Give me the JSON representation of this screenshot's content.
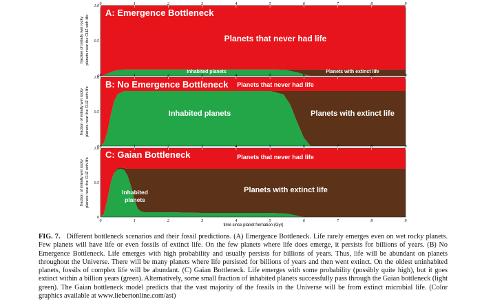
{
  "colors": {
    "never_had_life": "#e8141b",
    "inhabited": "#22a648",
    "extinct": "#5c3218",
    "light_inhabited": "#8fd45e",
    "text": "#ffffff"
  },
  "figure": {
    "xlabel": "time since planet formation (Gyr)",
    "ylabel_line1": "fraction of initially wet rocky",
    "ylabel_line2": "planets near the CHZ with life"
  },
  "caption": {
    "label": "FIG. 7.",
    "text": "Different bottleneck scenarios and their fossil predictions. (A) Emergence Bottleneck. Life rarely emerges even on wet rocky planets. Few planets will have life or even fossils of extinct life. On the few planets where life does emerge, it persists for billions of years. (B) No Emergence Bottleneck. Life emerges with high probability and usually persists for billions of years. Thus, life will be abundant on planets throughout the Universe. There will be many planets where life persisted for billions of years and then went extinct. On the oldest uninhabited planets, fossils of complex life will be abundant. (C) Gaian Bottleneck. Life emerges with some probability (possibly quite high), but it goes extinct within a billion years (green). Alternatively, some small fraction of inhabited planets successfully pass through the Gaian bottleneck (light green). The Gaian bottleneck model predicts that the vast majority of the fossils in the Universe will be from extinct microbial life. (Color graphics available at www.liebertonline.com/ast)"
  },
  "chart_data": [
    {
      "type": "area",
      "panel": "A",
      "title": "A: Emergence Bottleneck",
      "xlabel": "",
      "ylabel": "fraction of initially wet rocky planets near the CHZ with life",
      "xlim": [
        0,
        9
      ],
      "ylim": [
        0,
        1
      ],
      "xticks": [
        "0",
        "1",
        "2",
        "3",
        "4",
        "5",
        "6",
        "7",
        "8",
        "9"
      ],
      "yticks": [
        "0",
        "0.5",
        "1.0"
      ],
      "x": [
        0,
        0.1,
        0.2,
        0.35,
        0.5,
        0.7,
        1.0,
        2.0,
        3.0,
        4.0,
        5.0,
        5.5,
        5.8,
        6.0,
        6.2,
        7.0,
        8.0,
        9.0
      ],
      "series": [
        {
          "name": "Inhabited planets",
          "color": "#22a648",
          "values": [
            0,
            0.01,
            0.03,
            0.06,
            0.08,
            0.09,
            0.09,
            0.09,
            0.09,
            0.09,
            0.09,
            0.08,
            0.05,
            0.02,
            0,
            0,
            0,
            0
          ]
        },
        {
          "name": "Planets with extinct life",
          "color": "#5c3218",
          "values": [
            0,
            0,
            0,
            0,
            0,
            0,
            0,
            0,
            0,
            0,
            0,
            0.01,
            0.04,
            0.07,
            0.09,
            0.09,
            0.09,
            0.09
          ]
        },
        {
          "name": "Planets that never had life",
          "color": "#e8141b",
          "values": [
            1,
            0.99,
            0.97,
            0.94,
            0.92,
            0.91,
            0.91,
            0.91,
            0.91,
            0.91,
            0.91,
            0.91,
            0.91,
            0.91,
            0.91,
            0.91,
            0.91,
            0.91
          ]
        }
      ]
    },
    {
      "type": "area",
      "panel": "B",
      "title": "B: No Emergence Bottleneck",
      "xlabel": "",
      "ylabel": "fraction of initially wet rocky planets near the CHZ with life",
      "xlim": [
        0,
        9
      ],
      "ylim": [
        0,
        1
      ],
      "xticks": [
        "0",
        "1",
        "2",
        "3",
        "4",
        "5",
        "6",
        "7",
        "8",
        "9"
      ],
      "yticks": [
        "0",
        "0.5",
        "1.0"
      ],
      "x": [
        0,
        0.1,
        0.2,
        0.3,
        0.4,
        0.5,
        0.7,
        1.0,
        2.0,
        3.0,
        4.0,
        5.0,
        5.4,
        5.6,
        5.8,
        6.0,
        6.2,
        7.0,
        8.0,
        9.0
      ],
      "series": [
        {
          "name": "Inhabited planets",
          "color": "#22a648",
          "values": [
            0,
            0.05,
            0.2,
            0.45,
            0.65,
            0.75,
            0.8,
            0.8,
            0.8,
            0.8,
            0.8,
            0.8,
            0.75,
            0.6,
            0.35,
            0.12,
            0,
            0,
            0,
            0
          ]
        },
        {
          "name": "Planets with extinct life",
          "color": "#5c3218",
          "values": [
            0,
            0,
            0,
            0,
            0,
            0,
            0,
            0,
            0,
            0,
            0,
            0,
            0.05,
            0.2,
            0.45,
            0.68,
            0.8,
            0.8,
            0.8,
            0.8
          ]
        },
        {
          "name": "Planets that never had life",
          "color": "#e8141b",
          "values": [
            1,
            0.95,
            0.8,
            0.55,
            0.35,
            0.25,
            0.2,
            0.2,
            0.2,
            0.2,
            0.2,
            0.2,
            0.2,
            0.2,
            0.2,
            0.2,
            0.2,
            0.2,
            0.2,
            0.2
          ]
        }
      ]
    },
    {
      "type": "area",
      "panel": "C",
      "title": "C: Gaian Bottleneck",
      "xlabel": "time since planet formation (Gyr)",
      "ylabel": "fraction of initially wet rocky planets near the CHZ with life",
      "xlim": [
        0,
        9
      ],
      "ylim": [
        0,
        1
      ],
      "xticks": [
        "0",
        "1",
        "2",
        "3",
        "4",
        "5",
        "6",
        "7",
        "8",
        "9"
      ],
      "yticks": [
        "0",
        "0.5",
        "1.0"
      ],
      "x": [
        0,
        0.1,
        0.2,
        0.3,
        0.4,
        0.5,
        0.6,
        0.7,
        0.8,
        0.9,
        1.0,
        1.1,
        1.2,
        1.3,
        1.5,
        2.0,
        3.0,
        4.0,
        5.0,
        5.5,
        5.8,
        6.0,
        7.0,
        8.0,
        9.0
      ],
      "series": [
        {
          "name": "Inhabited planets",
          "color": "#22a648",
          "values": [
            0,
            0.05,
            0.25,
            0.5,
            0.64,
            0.69,
            0.7,
            0.68,
            0.6,
            0.45,
            0.25,
            0.12,
            0.08,
            0.07,
            0.07,
            0.07,
            0.06,
            0.06,
            0.06,
            0.05,
            0.02,
            0,
            0,
            0,
            0
          ]
        },
        {
          "name": "Planets with extinct life",
          "color": "#5c3218",
          "values": [
            0,
            0,
            0,
            0,
            0.01,
            0.02,
            0.02,
            0.03,
            0.1,
            0.25,
            0.45,
            0.58,
            0.62,
            0.63,
            0.63,
            0.63,
            0.64,
            0.64,
            0.64,
            0.65,
            0.68,
            0.7,
            0.7,
            0.7,
            0.7
          ]
        },
        {
          "name": "Planets that never had life",
          "color": "#e8141b",
          "values": [
            1,
            0.95,
            0.75,
            0.5,
            0.35,
            0.29,
            0.28,
            0.29,
            0.3,
            0.3,
            0.3,
            0.3,
            0.3,
            0.3,
            0.3,
            0.3,
            0.3,
            0.3,
            0.3,
            0.3,
            0.3,
            0.3,
            0.3,
            0.3,
            0.3
          ]
        }
      ]
    }
  ],
  "labels": {
    "A": {
      "never": "Planets that never had life",
      "inhabited": "Inhabited planets",
      "extinct": "Planets with extinct life"
    },
    "B": {
      "never": "Planets that never had life",
      "inhabited": "Inhabited planets",
      "extinct": "Planets with extinct life"
    },
    "C": {
      "never": "Planets that never had life",
      "inhabited_line1": "Inhabited",
      "inhabited_line2": "planets",
      "extinct": "Planets with extinct life"
    }
  }
}
